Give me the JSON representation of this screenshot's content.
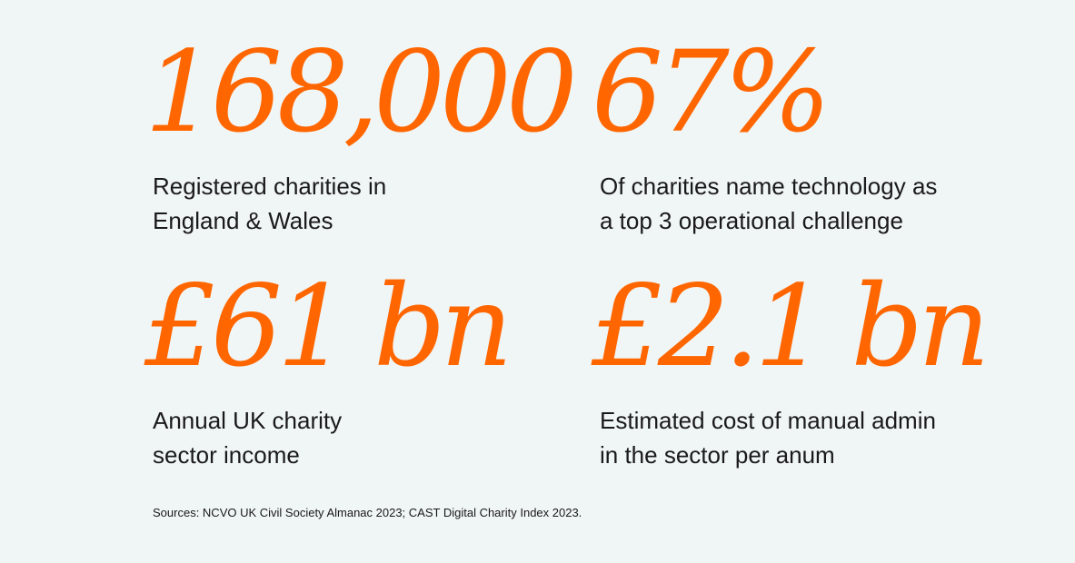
{
  "stats": [
    {
      "value": "168,000",
      "caption": "Registered charities in\nEngland & Wales"
    },
    {
      "value": "67%",
      "caption": "Of charities name technology as\na top 3 operational challenge"
    },
    {
      "value": "£61 bn",
      "caption": "Annual UK charity\nsector income"
    },
    {
      "value": "£2.1 bn",
      "caption": "Estimated cost of manual admin\nin the sector per anum"
    }
  ],
  "sources": "Sources: NCVO UK Civil Society Almanac 2023; CAST Digital Charity Index 2023.",
  "colors": {
    "accent": "#ff6600",
    "background": "#f0f5f5",
    "text": "#1a1a1a"
  }
}
